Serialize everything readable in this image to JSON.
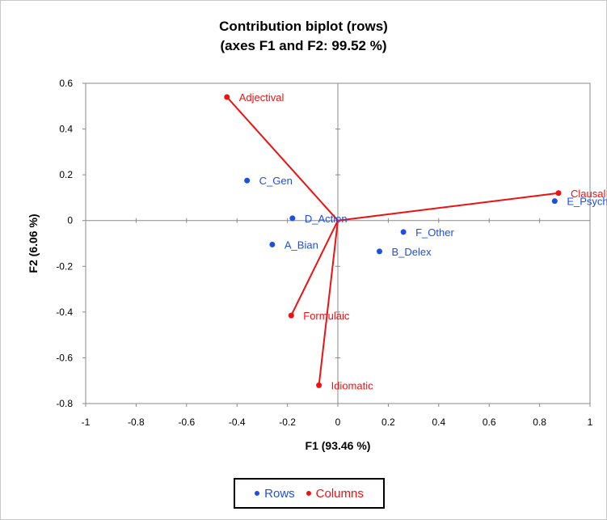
{
  "chart_data": {
    "type": "scatter",
    "title_line1": "Contribution biplot (rows)",
    "title_line2": "(axes F1 and F2: 99.52 %)",
    "xlabel": "F1 (93.46 %)",
    "ylabel": "F2 (6.06 %)",
    "xlim": [
      -1,
      1
    ],
    "ylim": [
      -0.8,
      0.6
    ],
    "x_ticks": [
      "-1",
      "-0.8",
      "-0.6",
      "-0.4",
      "-0.2",
      "0",
      "0.2",
      "0.4",
      "0.6",
      "0.8",
      "1"
    ],
    "y_ticks": [
      "-0.8",
      "-0.6",
      "-0.4",
      "-0.2",
      "0",
      "0.2",
      "0.4",
      "0.6"
    ],
    "x_tick_values": [
      -1,
      -0.8,
      -0.6,
      -0.4,
      -0.2,
      0,
      0.2,
      0.4,
      0.6,
      0.8,
      1
    ],
    "y_tick_values": [
      -0.8,
      -0.6,
      -0.4,
      -0.2,
      0,
      0.2,
      0.4,
      0.6
    ],
    "grid": false,
    "legend_position": "bottom",
    "series": [
      {
        "name": "Rows",
        "color": "#1f4fe0",
        "points": [
          {
            "label": "C_Gen",
            "x": -0.36,
            "y": 0.175
          },
          {
            "label": "D_Action",
            "x": -0.18,
            "y": 0.01
          },
          {
            "label": "A_Bian",
            "x": -0.26,
            "y": -0.105
          },
          {
            "label": "F_Other",
            "x": 0.26,
            "y": -0.05
          },
          {
            "label": "B_Delex",
            "x": 0.165,
            "y": -0.135
          },
          {
            "label": "E_Psych",
            "x": 0.86,
            "y": 0.085
          }
        ]
      },
      {
        "name": "Columns",
        "color": "#ee1111",
        "vectors": true,
        "points": [
          {
            "label": "Adjectival",
            "x": -0.44,
            "y": 0.54
          },
          {
            "label": "Clausal",
            "x": 0.875,
            "y": 0.12
          },
          {
            "label": "Formulaic",
            "x": -0.185,
            "y": -0.415
          },
          {
            "label": "Idiomatic",
            "x": -0.075,
            "y": -0.72
          }
        ]
      }
    ]
  },
  "legend": {
    "rows_label": "Rows",
    "columns_label": "Columns"
  }
}
